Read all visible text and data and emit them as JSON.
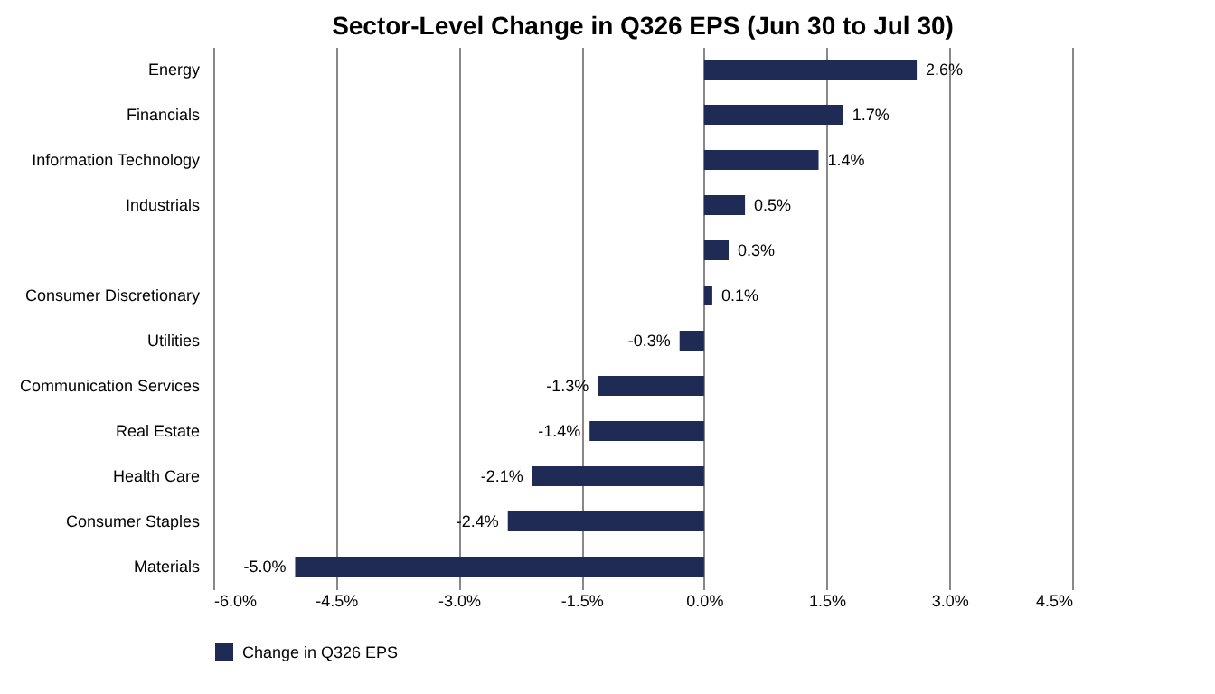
{
  "chart_data": {
    "type": "bar",
    "orientation": "horizontal",
    "title": "Sector-Level Change in Q326 EPS (Jun 30 to Jul 30)",
    "categories": [
      "Energy",
      "Financials",
      "Information Technology",
      "Industrials",
      null,
      "Consumer Discretionary",
      "Utilities",
      "Communication Services",
      "Real Estate",
      "Health Care",
      "Consumer Staples",
      "Materials"
    ],
    "series": [
      {
        "name": "Change in Q326 EPS",
        "color": "#1f2a55",
        "values": [
          2.6,
          1.7,
          1.4,
          0.5,
          0.3,
          0.1,
          -0.3,
          -1.3,
          -1.4,
          -2.1,
          -2.4,
          -5.0
        ],
        "value_labels": [
          "2.6%",
          "1.7%",
          "1.4%",
          "0.5%",
          "0.3%",
          "0.1%",
          "-0.3%",
          "-1.3%",
          "-1.4%",
          "-2.1%",
          "-2.4%",
          "-5.0%"
        ]
      }
    ],
    "xlim": [
      -6,
      4.5
    ],
    "xticks": [
      {
        "value": -6,
        "label": "-6.0%"
      },
      {
        "value": -4.5,
        "label": "-4.5%"
      },
      {
        "value": -3,
        "label": "-3.0%"
      },
      {
        "value": -1.5,
        "label": "-1.5%"
      },
      {
        "value": 0,
        "label": "0.0%"
      },
      {
        "value": 1.5,
        "label": "1.5%"
      },
      {
        "value": 3,
        "label": "3.0%"
      },
      {
        "value": 4.5,
        "label": "4.5%"
      }
    ],
    "grid": "x",
    "legend": "bottom"
  }
}
